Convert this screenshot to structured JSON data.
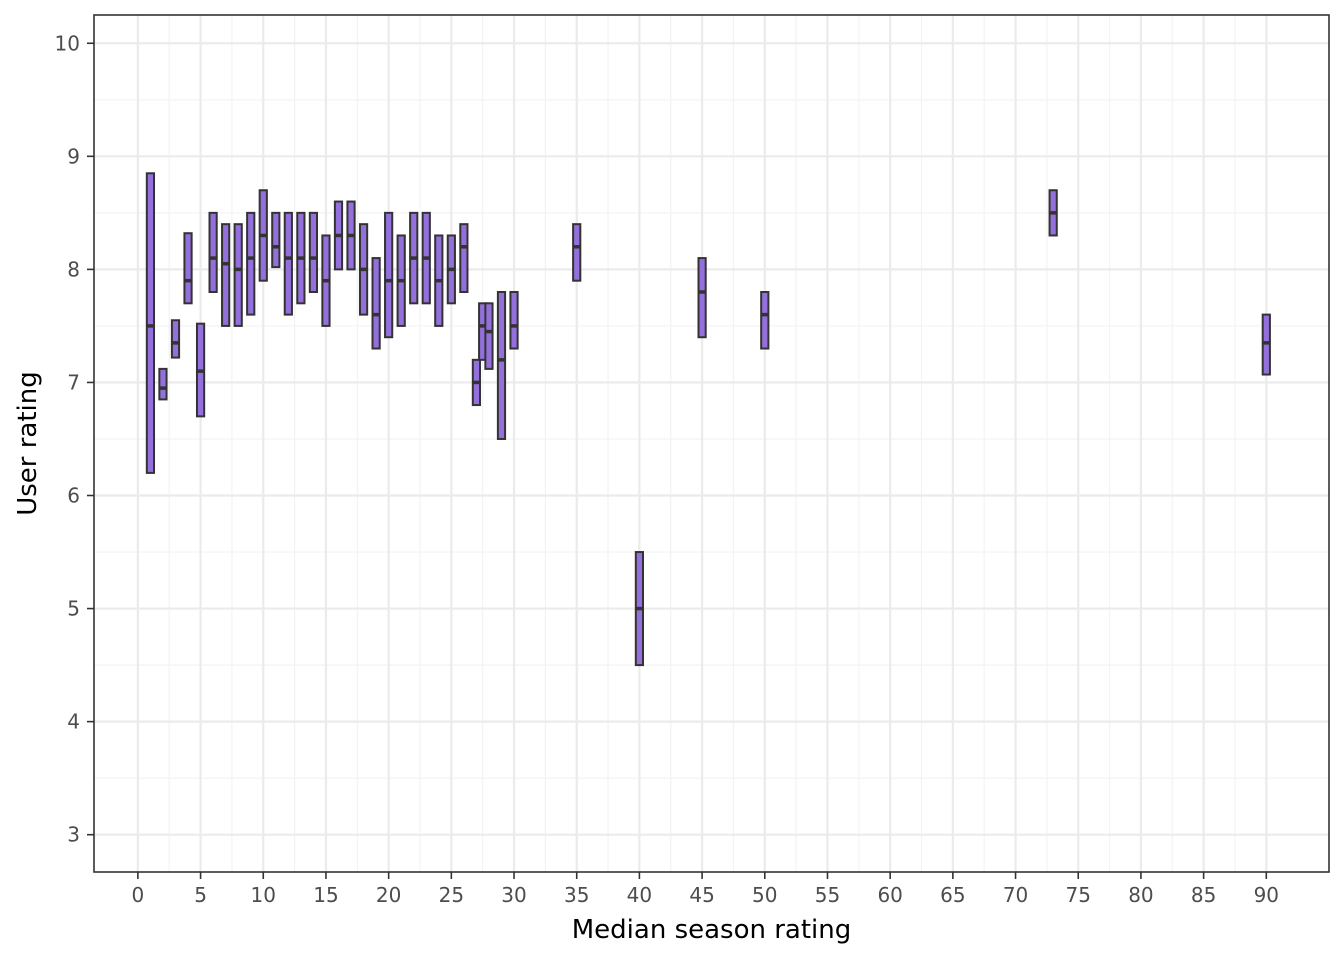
{
  "chart_data": {
    "type": "boxplot",
    "title": "",
    "xlabel": "Median season rating",
    "ylabel": "User rating",
    "xlim": [
      -3.5,
      95
    ],
    "ylim": [
      2.67,
      10.25
    ],
    "x_ticks": [
      0,
      5,
      10,
      15,
      20,
      25,
      30,
      35,
      40,
      45,
      50,
      55,
      60,
      65,
      70,
      75,
      80,
      85,
      90
    ],
    "y_ticks": [
      3,
      4,
      5,
      6,
      7,
      8,
      9,
      10
    ],
    "grid": true,
    "colors": {
      "box_fill": "#9370DB",
      "box_stroke": "#333333",
      "grid_major": "#ebebeb",
      "grid_minor": "#f3f3f3",
      "panel_border": "#333333"
    },
    "boxes": [
      {
        "x": 1,
        "low": 6.2,
        "median": 7.5,
        "high": 8.85
      },
      {
        "x": 2,
        "low": 6.85,
        "median": 6.95,
        "high": 7.12
      },
      {
        "x": 3,
        "low": 7.22,
        "median": 7.35,
        "high": 7.55
      },
      {
        "x": 4,
        "low": 7.7,
        "median": 7.9,
        "high": 8.32
      },
      {
        "x": 5,
        "low": 6.7,
        "median": 7.1,
        "high": 7.52
      },
      {
        "x": 6,
        "low": 7.8,
        "median": 8.1,
        "high": 8.5
      },
      {
        "x": 7,
        "low": 7.5,
        "median": 8.05,
        "high": 8.4
      },
      {
        "x": 8,
        "low": 7.5,
        "median": 8.0,
        "high": 8.4
      },
      {
        "x": 9,
        "low": 7.6,
        "median": 8.1,
        "high": 8.5
      },
      {
        "x": 10,
        "low": 7.9,
        "median": 8.3,
        "high": 8.7
      },
      {
        "x": 11,
        "low": 8.02,
        "median": 8.2,
        "high": 8.5
      },
      {
        "x": 12,
        "low": 7.6,
        "median": 8.1,
        "high": 8.5
      },
      {
        "x": 13,
        "low": 7.7,
        "median": 8.1,
        "high": 8.5
      },
      {
        "x": 14,
        "low": 7.8,
        "median": 8.1,
        "high": 8.5
      },
      {
        "x": 15,
        "low": 7.5,
        "median": 7.9,
        "high": 8.3
      },
      {
        "x": 16,
        "low": 8.0,
        "median": 8.3,
        "high": 8.6
      },
      {
        "x": 17,
        "low": 8.0,
        "median": 8.3,
        "high": 8.6
      },
      {
        "x": 18,
        "low": 7.6,
        "median": 8.0,
        "high": 8.4
      },
      {
        "x": 19,
        "low": 7.3,
        "median": 7.6,
        "high": 8.1
      },
      {
        "x": 20,
        "low": 7.4,
        "median": 7.9,
        "high": 8.5
      },
      {
        "x": 21,
        "low": 7.5,
        "median": 7.9,
        "high": 8.3
      },
      {
        "x": 22,
        "low": 7.7,
        "median": 8.1,
        "high": 8.5
      },
      {
        "x": 23,
        "low": 7.7,
        "median": 8.1,
        "high": 8.5
      },
      {
        "x": 24,
        "low": 7.5,
        "median": 7.9,
        "high": 8.3
      },
      {
        "x": 25,
        "low": 7.7,
        "median": 8.0,
        "high": 8.3
      },
      {
        "x": 26,
        "low": 7.8,
        "median": 8.2,
        "high": 8.4
      },
      {
        "x": 27,
        "low": 6.8,
        "median": 7.0,
        "high": 7.2
      },
      {
        "x": 27.5,
        "low": 7.2,
        "median": 7.5,
        "high": 7.7
      },
      {
        "x": 28,
        "low": 7.12,
        "median": 7.45,
        "high": 7.7
      },
      {
        "x": 29,
        "low": 6.5,
        "median": 7.2,
        "high": 7.8
      },
      {
        "x": 30,
        "low": 7.3,
        "median": 7.5,
        "high": 7.8
      },
      {
        "x": 35,
        "low": 7.9,
        "median": 8.2,
        "high": 8.4
      },
      {
        "x": 40,
        "low": 4.5,
        "median": 5.0,
        "high": 5.5
      },
      {
        "x": 45,
        "low": 7.4,
        "median": 7.8,
        "high": 8.1
      },
      {
        "x": 50,
        "low": 7.3,
        "median": 7.6,
        "high": 7.8
      },
      {
        "x": 73,
        "low": 8.3,
        "median": 8.5,
        "high": 8.7
      },
      {
        "x": 90,
        "low": 7.07,
        "median": 7.35,
        "high": 7.6
      }
    ]
  }
}
